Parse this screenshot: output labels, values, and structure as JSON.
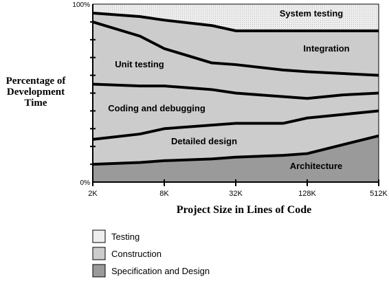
{
  "chart_data": {
    "type": "area",
    "title": "",
    "ylabel": [
      "Percentage of",
      "Development",
      "Time"
    ],
    "xlabel": "Project Size in Lines of Code",
    "ylim": [
      0,
      100
    ],
    "y_tick_labels": [
      "0%",
      "100%"
    ],
    "x_tick_labels": [
      "2K",
      "8K",
      "32K",
      "128K",
      "512K"
    ],
    "x": [
      "2K",
      "5K",
      "8K",
      "20K",
      "32K",
      "80K",
      "128K",
      "256K",
      "512K"
    ],
    "boundaries": {
      "architecture_top": [
        10,
        11,
        12,
        13,
        14,
        15,
        16,
        21,
        26
      ],
      "detailed_design_top": [
        24,
        27,
        30,
        32,
        33,
        33,
        36,
        38,
        40
      ],
      "coding_top": [
        55,
        54,
        54,
        52,
        50,
        48,
        47,
        49,
        50
      ],
      "unit_testing_top": [
        90,
        82,
        75,
        67,
        66,
        63,
        62,
        61,
        60
      ],
      "integration_top": [
        95,
        93,
        91,
        88,
        85,
        85,
        85,
        85,
        85
      ]
    },
    "regions": [
      {
        "label": "Architecture",
        "group": "Specification and Design"
      },
      {
        "label": "Detailed design",
        "group": "Construction"
      },
      {
        "label": "Coding and debugging",
        "group": "Construction"
      },
      {
        "label": "Unit testing",
        "group": "Construction"
      },
      {
        "label": "Integration",
        "group": "Testing"
      },
      {
        "label": "System testing",
        "group": "Testing"
      }
    ],
    "legend": {
      "placement": "bottom-left",
      "entries": [
        {
          "label": "Testing",
          "color": "#eeeeee"
        },
        {
          "label": "Construction",
          "color": "#cccccc"
        },
        {
          "label": "Specification and Design",
          "color": "#9a9a9a"
        }
      ]
    },
    "colors": {
      "testing": "#eeeeee",
      "construction": "#cccccc",
      "spec_design": "#9a9a9a",
      "line": "#000000"
    }
  }
}
